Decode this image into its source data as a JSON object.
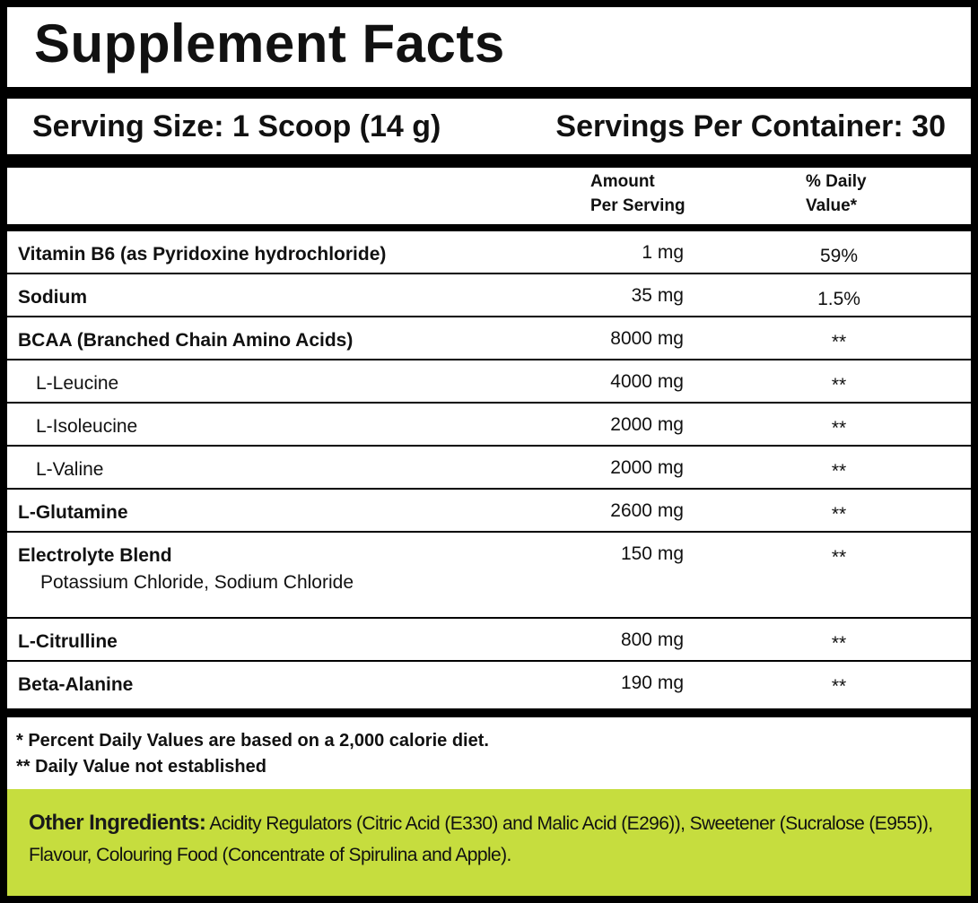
{
  "title": "Supplement Facts",
  "serving_size": "Serving Size: 1 Scoop (14 g)",
  "servings_per_container": "Servings Per Container: 30",
  "columns": {
    "amount": [
      "Amount",
      "Per Serving"
    ],
    "daily_value": [
      "% Daily",
      "Value*"
    ]
  },
  "rows": [
    {
      "name": "Vitamin B6 (as Pyridoxine hydrochloride)",
      "amount": "1 mg",
      "daily_value": "59%"
    },
    {
      "name": "Sodium",
      "amount": "35 mg",
      "daily_value": "1.5%"
    },
    {
      "name": "BCAA (Branched Chain Amino Acids)",
      "amount": "8000 mg",
      "daily_value": "**",
      "components": [
        {
          "name": "L-Leucine",
          "amount": "4000 mg",
          "daily_value": "**"
        },
        {
          "name": "L-Isoleucine",
          "amount": "2000 mg",
          "daily_value": "**"
        },
        {
          "name": "L-Valine",
          "amount": "2000 mg",
          "daily_value": "**"
        }
      ]
    },
    {
      "name": "L-Glutamine",
      "amount": "2600 mg",
      "daily_value": "**"
    },
    {
      "name": "Electrolyte Blend",
      "description": "Potassium Chloride, Sodium Chloride",
      "amount": "150 mg",
      "daily_value": "**"
    },
    {
      "name": "L-Citrulline",
      "amount": "800 mg",
      "daily_value": "**"
    },
    {
      "name": "Beta-Alanine",
      "amount": "190 mg",
      "daily_value": "**"
    }
  ],
  "footnotes": [
    "* Percent Daily Values are based on a 2,000 calorie diet.",
    "** Daily Value not established"
  ],
  "other_ingredients": {
    "label": "Other Ingredients:",
    "text": "Acidity Regulators (Citric Acid (E330) and Malic Acid (E296)), Sweetener (Sucralose (E955)), Flavour, Colouring Food (Concentrate of Spirulina and Apple)."
  }
}
